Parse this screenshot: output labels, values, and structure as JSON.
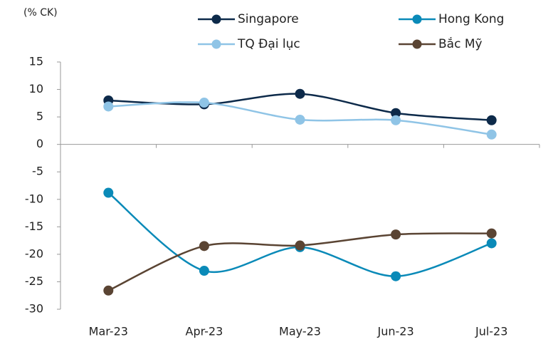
{
  "chart_data": {
    "type": "line",
    "y_label": "(% CK)",
    "categories": [
      "Mar-23",
      "Apr-23",
      "May-23",
      "Jun-23",
      "Jul-23"
    ],
    "series": [
      {
        "name": "Singapore",
        "color": "#0d2a4a",
        "values": [
          8.0,
          7.3,
          9.2,
          5.7,
          4.4
        ]
      },
      {
        "name": "Hong Kong",
        "color": "#0a8ab8",
        "values": [
          -8.8,
          -23.0,
          -18.7,
          -24.0,
          -18.0
        ]
      },
      {
        "name": "TQ Đại lục",
        "color": "#8fc4e6",
        "values": [
          6.9,
          7.6,
          4.5,
          4.4,
          1.8
        ]
      },
      {
        "name": "Bắc Mỹ",
        "color": "#5a4433",
        "values": [
          -26.6,
          -18.5,
          -18.4,
          -16.4,
          -16.2
        ]
      }
    ],
    "ylim": [
      -30,
      15
    ],
    "yticks": [
      -30,
      -25,
      -20,
      -15,
      -10,
      -5,
      0,
      5,
      10,
      15
    ],
    "smooth": true
  }
}
